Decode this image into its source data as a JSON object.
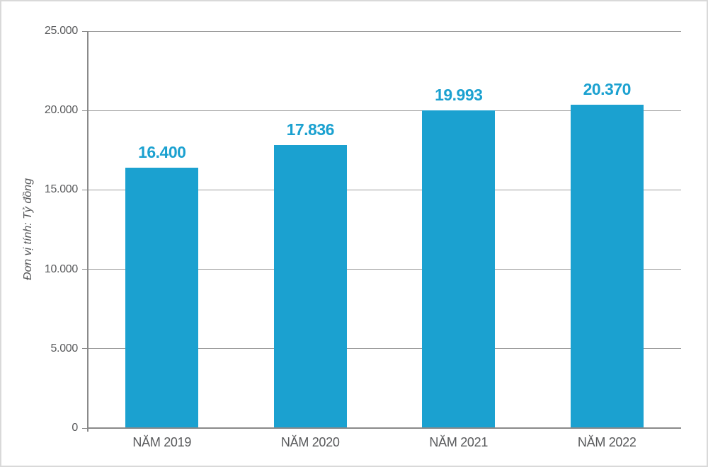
{
  "chart_data": {
    "type": "bar",
    "title": "",
    "ylabel": "Đơn vị tính: Tỷ đồng",
    "xlabel": "",
    "categories": [
      "NĂM 2019",
      "NĂM 2020",
      "NĂM 2021",
      "NĂM 2022"
    ],
    "values": [
      16400,
      17836,
      19993,
      20370
    ],
    "value_labels": [
      "16.400",
      "17.836",
      "19.993",
      "20.370"
    ],
    "ylim": [
      0,
      25000
    ],
    "ytick_values": [
      0,
      5000,
      10000,
      15000,
      20000,
      25000
    ],
    "ytick_labels": [
      "0",
      "5.000",
      "10.000",
      "15.000",
      "20.000",
      "25.000"
    ],
    "grid": "horizontal",
    "legend": "none",
    "colors": {
      "bar": "#1ba1d0",
      "value_label": "#1ba1d0",
      "axis_text": "#58595b",
      "gridline": "#9c9c9c",
      "axis_line": "#8a8a8a",
      "page_border": "#d9d9d9",
      "background": "#ffffff"
    }
  }
}
